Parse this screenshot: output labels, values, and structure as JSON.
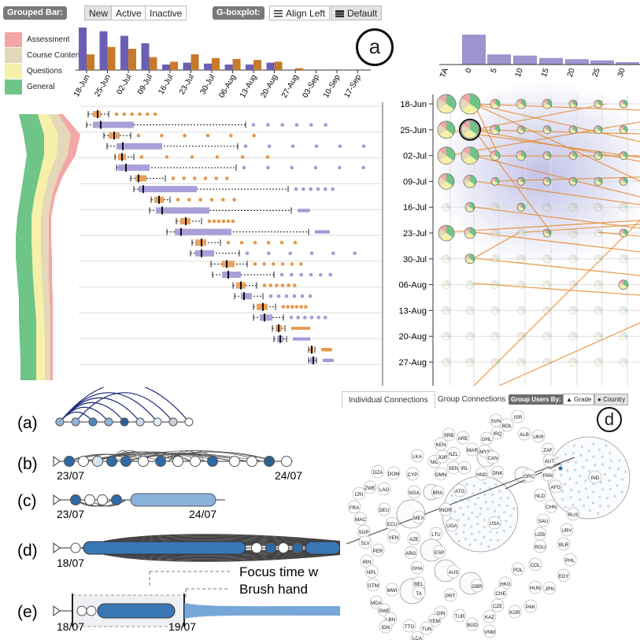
{
  "toolbar": {
    "grouped_bar_label": "Grouped Bar:",
    "buttons": [
      "New",
      "Active",
      "Inactive"
    ],
    "active_button": "New",
    "gboxplot_label": "G-boxplot:",
    "align_left": "Align Left",
    "default": "Default",
    "selected_align": "Default"
  },
  "legend": [
    {
      "label": "Assessment",
      "color": "#f4a6a6"
    },
    {
      "label": "Course Content",
      "color": "#e5d8b8"
    },
    {
      "label": "Questions",
      "color": "#f6f0a8"
    },
    {
      "label": "General",
      "color": "#6fc488"
    }
  ],
  "weeks": [
    "18-Jun",
    "25-Jun",
    "02-Jul",
    "09-Jul",
    "16-Jul",
    "23-Jul",
    "30-Jul",
    "06-Aug",
    "13-Aug",
    "20-Aug",
    "27-Aug",
    "03-Sep",
    "10-Sep",
    "17-Sep"
  ],
  "matrix_weeks": [
    "18-Jun",
    "25-Jun",
    "02-Jul",
    "09-Jul",
    "16-Jul",
    "23-Jul",
    "30-Jul",
    "06-Aug",
    "13-Aug",
    "20-Aug",
    "27-Aug"
  ],
  "matrix_cols": [
    "TA",
    "0",
    "5",
    "10",
    "15",
    "20",
    "25",
    "30"
  ],
  "chart_data": [
    {
      "type": "bar",
      "categories": [
        "18-Jun",
        "25-Jun",
        "02-Jul",
        "09-Jul",
        "16-Jul",
        "23-Jul",
        "30-Jul",
        "06-Aug",
        "13-Aug",
        "20-Aug",
        "27-Aug",
        "03-Sep",
        "10-Sep",
        "17-Sep"
      ],
      "series": [
        {
          "values": [
            92,
            84,
            74,
            58,
            12,
            16,
            14,
            12,
            12,
            16,
            0,
            0,
            0,
            0
          ],
          "color": "#6b5fb5"
        },
        {
          "values": [
            34,
            50,
            46,
            28,
            18,
            34,
            26,
            24,
            22,
            18,
            4,
            0,
            0,
            0
          ],
          "color": "#c77a2a"
        }
      ]
    },
    {
      "type": "bar",
      "categories": [
        "TA",
        "0",
        "5",
        "10",
        "15",
        "20",
        "25",
        "30"
      ],
      "values": [
        0,
        100,
        34,
        30,
        22,
        18,
        14,
        8
      ],
      "color": "#9c94cf"
    }
  ],
  "connections_tabs": {
    "individual": "Individual Connections",
    "group": "Group Connections",
    "group_by_label": "Group Users By:",
    "grade": "Grade",
    "country": "Country",
    "selected": "Country"
  },
  "panel_a_label": "a",
  "panel_d_label": "d",
  "countries": [
    "ISR",
    "SVN",
    "BOL",
    "SRB",
    "ARE",
    "GHL",
    "IRQ",
    "ALB",
    "UKR",
    "KEN",
    "MAR",
    "MYS",
    "ZAF",
    "LKA",
    "NIC",
    "JOR",
    "NZL",
    "CAN",
    "AUT",
    "DZA",
    "DOM",
    "CYP",
    "SEN",
    "IRL",
    "OMN",
    "HND",
    "DNK",
    "GRC",
    "PAN",
    "IND",
    "ZWE",
    "LAO",
    "CRI",
    "NGA",
    "BRA",
    "ATG",
    "AFG",
    "NLD",
    "FRA",
    "DEU",
    "MEX",
    "INOR",
    "CHN",
    "RUS",
    "MAC",
    "ECU",
    "UGA",
    "USA",
    "SAU",
    "URY",
    "SGP",
    "VEN",
    "AZE",
    "LTU",
    "UZB",
    "SLV",
    "ROU",
    "BLR",
    "PER",
    "ARG",
    "ESP",
    "PHL",
    "IRN",
    "GHA",
    "POL",
    "COL",
    "NPL",
    "BEL",
    "AUS",
    "HKG",
    "EGY",
    "GTM",
    "MWI",
    "GBR",
    "CHE",
    "HUN",
    "JPN",
    "MDA",
    "TA",
    "PRT",
    "CZE",
    "PAK",
    "SWE",
    "GIN",
    "TUR",
    "KAZ",
    "KOR",
    "LBN",
    "YEM",
    "BGD",
    "IDN",
    "TTO",
    "TUN",
    "VNM",
    "LCA"
  ],
  "timelines": [
    {
      "label": "(a)",
      "start": "",
      "end": ""
    },
    {
      "label": "(b)",
      "start": "23/07",
      "end": "24/07"
    },
    {
      "label": "(c)",
      "start": "23/07",
      "end": "24/07"
    },
    {
      "label": "(d)",
      "start": "18/07",
      "end": ""
    },
    {
      "label": "(e)",
      "start": "18/07",
      "end": "19/07"
    }
  ],
  "callouts": {
    "focus": "Focus time w",
    "brush": "Brush hand"
  }
}
